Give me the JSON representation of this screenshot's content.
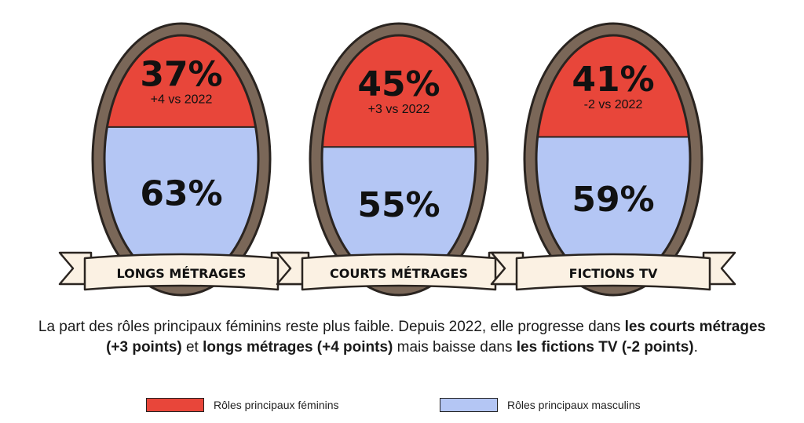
{
  "colors": {
    "feminin": "#e8463a",
    "masculin": "#b4c6f4",
    "frame": "#7a6758",
    "frame_dark": "#2a2420",
    "ribbon": "#fbf1e3",
    "text": "#111111"
  },
  "chart_data": {
    "type": "stacked-oval",
    "categories": [
      "LONGS MÉTRAGES",
      "COURTS MÉTRAGES",
      "FICTIONS TV"
    ],
    "series": [
      {
        "name": "Rôles principaux féminins",
        "values": [
          37,
          45,
          41
        ],
        "labels": [
          "37%",
          "45%",
          "41%"
        ],
        "changes": [
          "+4 vs 2022",
          "+3 vs 2022",
          "-2 vs 2022"
        ]
      },
      {
        "name": "Rôles principaux masculins",
        "values": [
          63,
          55,
          59
        ],
        "labels": [
          "63%",
          "55%",
          "59%"
        ]
      }
    ],
    "ylim": [
      0,
      100
    ],
    "legend_position": "bottom"
  },
  "caption": {
    "part1": "La part des rôles principaux féminins reste plus faible. Depuis 2022, elle progresse dans ",
    "bold1": "les courts métrages (+3 points)",
    "part2": " et ",
    "bold2": "longs métrages (+4 points)",
    "part3": " mais baisse dans ",
    "bold3": "les fictions TV (-2 points)",
    "part4": "."
  },
  "legend": {
    "feminin_label": "Rôles principaux féminins",
    "masculin_label": "Rôles principaux masculins"
  }
}
